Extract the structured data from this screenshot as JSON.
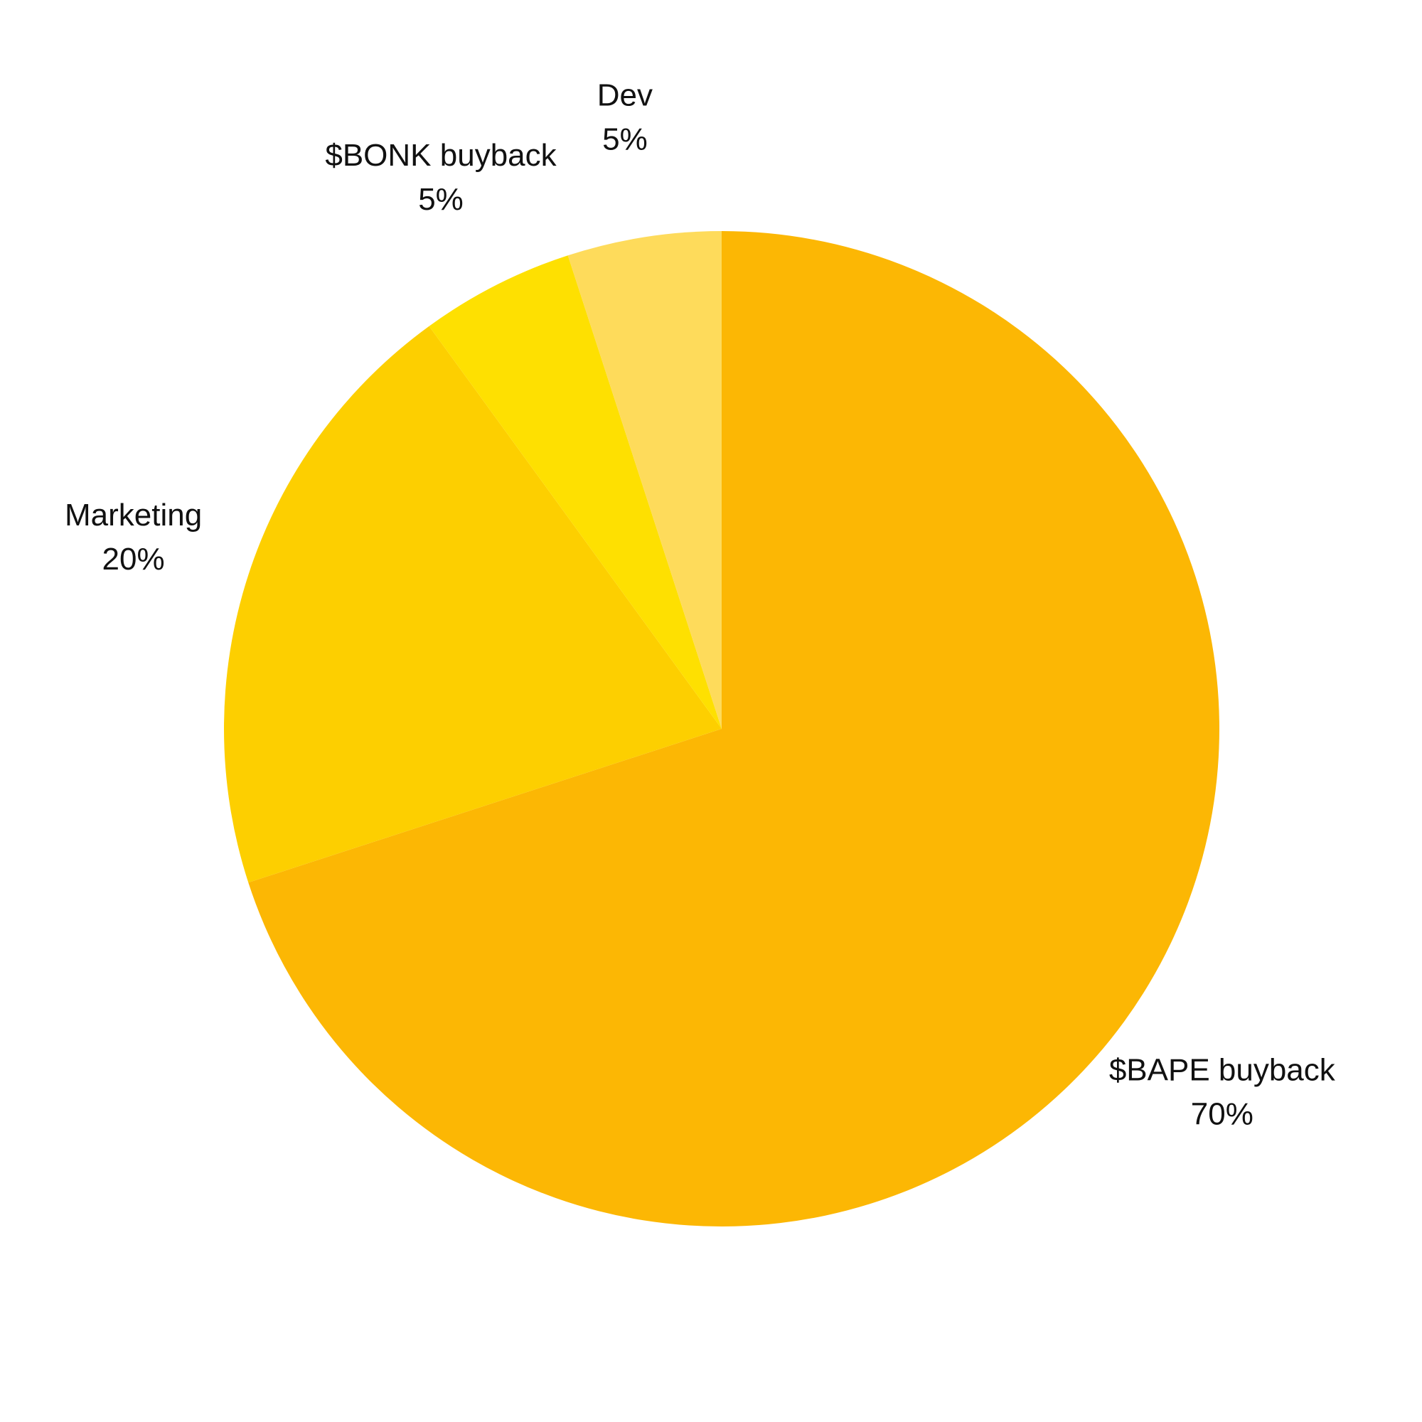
{
  "chart_data": {
    "type": "pie",
    "start_position": "top",
    "direction": "clockwise",
    "slices": [
      {
        "label": "$BAPE buyback",
        "value": 70,
        "value_label": "70%",
        "color": "#FCB704"
      },
      {
        "label": "Marketing",
        "value": 20,
        "value_label": "20%",
        "color": "#FDCF00"
      },
      {
        "label": "$BONK buyback",
        "value": 5,
        "value_label": "5%",
        "color": "#FEE001"
      },
      {
        "label": "Dev",
        "value": 5,
        "value_label": "5%",
        "color": "#FEDB5B"
      }
    ]
  }
}
